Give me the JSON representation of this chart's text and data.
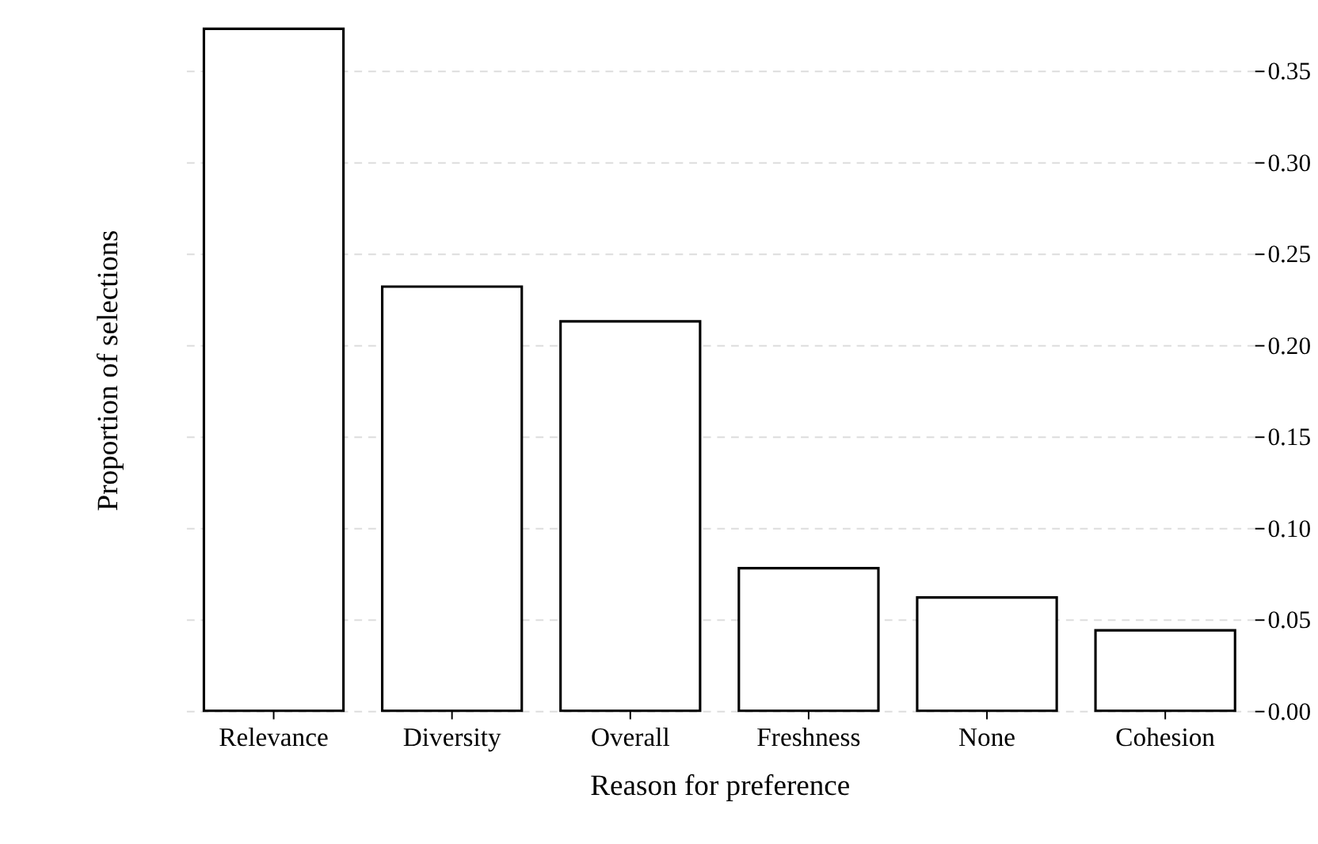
{
  "chart_data": {
    "type": "bar",
    "xlabel": "Reason for preference",
    "ylabel": "Proportion of selections",
    "categories": [
      "Relevance",
      "Diversity",
      "Overall",
      "Freshness",
      "None",
      "Cohesion"
    ],
    "values": [
      0.373,
      0.232,
      0.213,
      0.078,
      0.062,
      0.044
    ],
    "color": "#ffffff",
    "ylim": [
      0,
      0.373
    ],
    "yticks": [
      {
        "value": 0,
        "label": "0.00"
      },
      {
        "value": 0.05,
        "label": "0.05"
      },
      {
        "value": 0.1,
        "label": "0.10"
      },
      {
        "value": 0.15,
        "label": "0.15"
      },
      {
        "value": 0.2,
        "label": "0.20"
      },
      {
        "value": 0.25,
        "label": "0.25"
      },
      {
        "value": 0.3,
        "label": "0.30"
      },
      {
        "value": 0.35,
        "label": "0.35"
      }
    ],
    "grid": "y"
  }
}
